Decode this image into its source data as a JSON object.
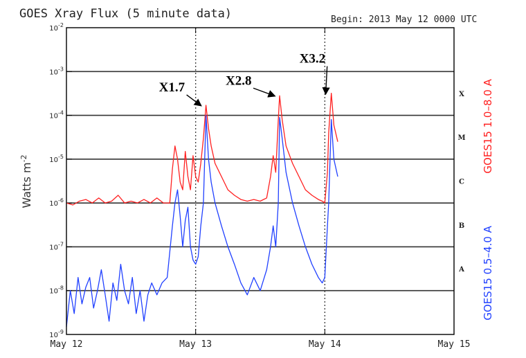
{
  "chart_data": {
    "type": "line",
    "title": "GOES Xray Flux (5 minute data)",
    "begin_label": "Begin:  2013 May 12 0000 UTC",
    "ylabel": "Watts m",
    "ylabel_sup": "-2",
    "y_scale": "log",
    "ylim": [
      1e-09,
      0.01
    ],
    "xlim": [
      0,
      3
    ],
    "x_unit": "days since 2013 May 12 0000 UTC",
    "grid": true,
    "x_ticks": [
      {
        "value": 0,
        "label": "May 12"
      },
      {
        "value": 1,
        "label": "May 13"
      },
      {
        "value": 2,
        "label": "May 14"
      },
      {
        "value": 3,
        "label": "May 15"
      }
    ],
    "y_ticks": [
      {
        "exp": -9,
        "base": "10",
        "sup": "-9"
      },
      {
        "exp": -8,
        "base": "10",
        "sup": "-8"
      },
      {
        "exp": -7,
        "base": "10",
        "sup": "-7"
      },
      {
        "exp": -6,
        "base": "10",
        "sup": "-6"
      },
      {
        "exp": -5,
        "base": "10",
        "sup": "-5"
      },
      {
        "exp": -4,
        "base": "10",
        "sup": "-4"
      },
      {
        "exp": -3,
        "base": "10",
        "sup": "-3"
      },
      {
        "exp": -2,
        "base": "10",
        "sup": "-2"
      }
    ],
    "flare_classes": [
      {
        "label": "A",
        "exp": -7.5
      },
      {
        "label": "B",
        "exp": -6.5
      },
      {
        "label": "C",
        "exp": -5.5
      },
      {
        "label": "M",
        "exp": -4.5
      },
      {
        "label": "X",
        "exp": -3.5
      }
    ],
    "annotations": [
      {
        "label": "X1.7",
        "x": 1.08,
        "y": 0.00017
      },
      {
        "label": "X2.8",
        "x": 1.65,
        "y": 0.00028
      },
      {
        "label": "X3.2",
        "x": 2.05,
        "y": 0.00032
      }
    ],
    "series": [
      {
        "name": "GOES15 1.0–8.0 A",
        "color": "#ff2020",
        "x": [
          0,
          0.05,
          0.1,
          0.15,
          0.2,
          0.25,
          0.3,
          0.35,
          0.4,
          0.45,
          0.5,
          0.55,
          0.6,
          0.65,
          0.7,
          0.75,
          0.8,
          0.82,
          0.84,
          0.86,
          0.88,
          0.9,
          0.92,
          0.94,
          0.96,
          0.98,
          1.0,
          1.02,
          1.04,
          1.06,
          1.08,
          1.1,
          1.12,
          1.15,
          1.2,
          1.25,
          1.3,
          1.35,
          1.4,
          1.45,
          1.5,
          1.55,
          1.58,
          1.6,
          1.62,
          1.64,
          1.65,
          1.67,
          1.7,
          1.75,
          1.8,
          1.85,
          1.9,
          1.95,
          1.98,
          2.0,
          2.02,
          2.03,
          2.05,
          2.07,
          2.1
        ],
        "y": [
          1e-06,
          9e-07,
          1.1e-06,
          1.2e-06,
          1e-06,
          1.3e-06,
          1e-06,
          1.1e-06,
          1.5e-06,
          1e-06,
          1.1e-06,
          1e-06,
          1.2e-06,
          1e-06,
          1.3e-06,
          1e-06,
          1e-06,
          6e-06,
          2e-05,
          1e-05,
          3e-06,
          2e-06,
          1.5e-05,
          4e-06,
          2e-06,
          1.2e-05,
          4e-06,
          3e-06,
          8e-06,
          3e-05,
          0.00017,
          5e-05,
          2e-05,
          8e-06,
          4e-06,
          2e-06,
          1.5e-06,
          1.2e-06,
          1.1e-06,
          1.2e-06,
          1.1e-06,
          1.3e-06,
          4e-06,
          1.2e-05,
          5e-06,
          8e-05,
          0.00028,
          8e-05,
          2e-05,
          8e-06,
          4e-06,
          2e-06,
          1.5e-06,
          1.2e-06,
          1.1e-06,
          1e-06,
          5e-06,
          4e-05,
          0.00032,
          6e-05,
          2.5e-05
        ]
      },
      {
        "name": "GOES15 0.5–4.0 A",
        "color": "#2040ff",
        "x": [
          0,
          0.03,
          0.06,
          0.09,
          0.12,
          0.15,
          0.18,
          0.21,
          0.24,
          0.27,
          0.3,
          0.33,
          0.36,
          0.39,
          0.42,
          0.45,
          0.48,
          0.51,
          0.54,
          0.57,
          0.6,
          0.63,
          0.66,
          0.7,
          0.74,
          0.78,
          0.82,
          0.84,
          0.86,
          0.88,
          0.9,
          0.92,
          0.94,
          0.96,
          0.98,
          1.0,
          1.02,
          1.04,
          1.06,
          1.08,
          1.1,
          1.12,
          1.15,
          1.2,
          1.25,
          1.3,
          1.35,
          1.4,
          1.45,
          1.5,
          1.55,
          1.58,
          1.6,
          1.62,
          1.64,
          1.65,
          1.67,
          1.7,
          1.75,
          1.8,
          1.85,
          1.9,
          1.95,
          1.98,
          2.0,
          2.02,
          2.03,
          2.05,
          2.07,
          2.1
        ],
        "y": [
          1.5e-09,
          1e-08,
          3e-09,
          2e-08,
          5e-09,
          1.2e-08,
          2e-08,
          4e-09,
          1e-08,
          3e-08,
          8e-09,
          2e-09,
          1.5e-08,
          6e-09,
          4e-08,
          1e-08,
          5e-09,
          2e-08,
          3e-09,
          1e-08,
          2e-09,
          8e-09,
          1.5e-08,
          8e-09,
          1.5e-08,
          2e-08,
          3e-07,
          1e-06,
          2e-06,
          5e-07,
          1e-07,
          4e-07,
          8e-07,
          1e-07,
          5e-08,
          4e-08,
          6e-08,
          3e-07,
          1e-06,
          0.0001,
          1e-05,
          3e-06,
          1e-06,
          3e-07,
          1e-07,
          4e-08,
          1.5e-08,
          8e-09,
          2e-08,
          1e-08,
          3e-08,
          1e-07,
          3e-07,
          1e-07,
          1e-06,
          9e-05,
          3e-05,
          5e-06,
          1e-06,
          3e-07,
          1e-07,
          4e-08,
          2e-08,
          1.5e-08,
          2e-08,
          3e-07,
          1e-06,
          8e-05,
          1e-05,
          4e-06
        ]
      }
    ]
  }
}
